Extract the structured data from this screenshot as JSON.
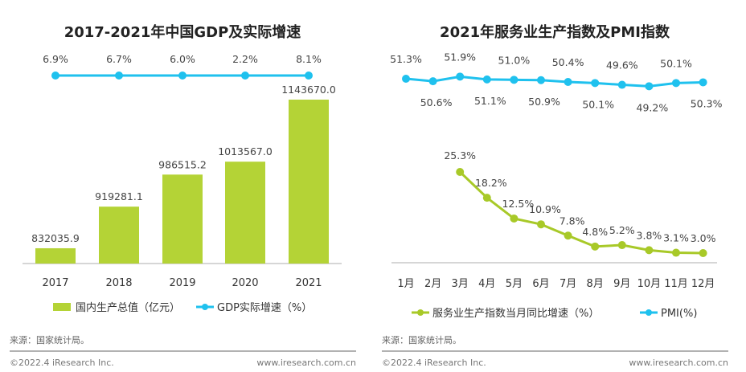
{
  "colors": {
    "bar": "#b4d336",
    "gdp_line": "#1fc1ee",
    "services_line": "#a8c928",
    "pmi_line": "#1fc1ee",
    "axis": "#c8c8c8"
  },
  "footer": {
    "source": "来源：国家统计局。",
    "copyright": "©2022.4 iResearch Inc.",
    "website": "www.iresearch.com.cn"
  },
  "chart_data": [
    {
      "type": "bar",
      "title": "2017-2021年中国GDP及实际增速",
      "categories": [
        "2017",
        "2018",
        "2019",
        "2020",
        "2021"
      ],
      "ylim": [
        800000,
        1143670
      ],
      "series": [
        {
          "name": "国内生产总值（亿元）",
          "type": "bar",
          "values": [
            832035.9,
            919281.1,
            986515.2,
            1013567.0,
            1143670.0
          ],
          "labels": [
            "832035.9",
            "919281.1",
            "986515.2",
            "1013567.0",
            "1143670.0"
          ]
        },
        {
          "name": "GDP实际增速（%）",
          "type": "line",
          "values": [
            6.9,
            6.7,
            6.0,
            2.2,
            8.1
          ],
          "labels": [
            "6.9%",
            "6.7%",
            "6.0%",
            "2.2%",
            "8.1%"
          ],
          "drawn_flat": true
        }
      ],
      "legend": "bottom",
      "grid": false
    },
    {
      "type": "line",
      "title": "2021年服务业生产指数及PMI指数",
      "categories": [
        "1月",
        "2月",
        "3月",
        "4月",
        "5月",
        "6月",
        "7月",
        "8月",
        "9月",
        "10月",
        "11月",
        "12月"
      ],
      "series": [
        {
          "name": "服务业生产指数当月同比增速（%）",
          "values": [
            null,
            null,
            25.3,
            18.2,
            12.5,
            10.9,
            7.8,
            4.8,
            5.2,
            3.8,
            3.1,
            3.0
          ],
          "labels": [
            null,
            null,
            "25.3%",
            "18.2%",
            "12.5%",
            "10.9%",
            "7.8%",
            "4.8%",
            "5.2%",
            "3.8%",
            "3.1%",
            "3.0%"
          ]
        },
        {
          "name": "PMI(%)",
          "values": [
            51.3,
            50.6,
            51.9,
            51.1,
            51.0,
            50.9,
            50.4,
            50.1,
            49.6,
            49.2,
            50.1,
            50.3
          ],
          "labels": [
            "51.3%",
            "50.6%",
            "51.9%",
            "51.1%",
            "51.0%",
            "50.9%",
            "50.4%",
            "50.1%",
            "49.6%",
            "49.2%",
            "50.1%",
            "50.3%"
          ]
        }
      ],
      "legend": "bottom",
      "grid": false
    }
  ]
}
